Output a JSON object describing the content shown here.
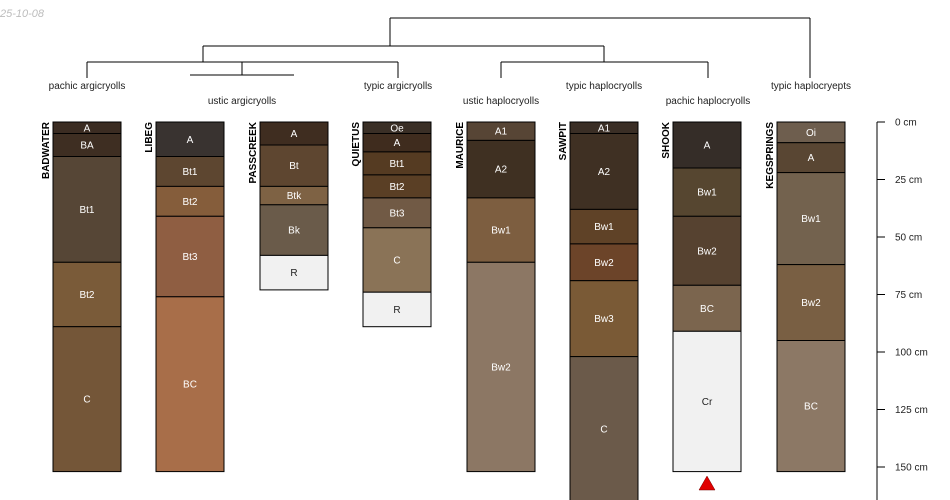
{
  "date_stamp": "25-10-08",
  "scale_labels": [
    "0 cm",
    "25 cm",
    "50 cm",
    "75 cm",
    "100 cm",
    "125 cm",
    "150 cm"
  ],
  "classes": [
    "pachic argicryolls",
    "ustic argicryolls",
    "typic argicryolls",
    "ustic haplocryolls",
    "typic haplocryolls",
    "pachic haplocryolls",
    "typic haplocryepts"
  ],
  "profiles": [
    {
      "name": "BADWATER",
      "horizons": [
        {
          "label": "A",
          "top": 0,
          "bottom": 5,
          "color": "#3b2c22"
        },
        {
          "label": "BA",
          "top": 5,
          "bottom": 15,
          "color": "#3e2e22"
        },
        {
          "label": "Bt1",
          "top": 15,
          "bottom": 61,
          "color": "#564636"
        },
        {
          "label": "Bt2",
          "top": 61,
          "bottom": 89,
          "color": "#7a5b39"
        },
        {
          "label": "C",
          "top": 89,
          "bottom": 152,
          "color": "#745638"
        }
      ]
    },
    {
      "name": "LIBEG",
      "horizons": [
        {
          "label": "A",
          "top": 0,
          "bottom": 15,
          "color": "#393330"
        },
        {
          "label": "Bt1",
          "top": 15,
          "bottom": 28,
          "color": "#5d4630"
        },
        {
          "label": "Bt2",
          "top": 28,
          "bottom": 41,
          "color": "#855d3b"
        },
        {
          "label": "Bt3",
          "top": 41,
          "bottom": 76,
          "color": "#8f5e42"
        },
        {
          "label": "BC",
          "top": 76,
          "bottom": 152,
          "color": "#a86e49"
        }
      ]
    },
    {
      "name": "PASSCREEK",
      "horizons": [
        {
          "label": "A",
          "top": 0,
          "bottom": 10,
          "color": "#3f2d20"
        },
        {
          "label": "Bt",
          "top": 10,
          "bottom": 28,
          "color": "#5e4630"
        },
        {
          "label": "Btk",
          "top": 28,
          "bottom": 36,
          "color": "#7e6244"
        },
        {
          "label": "Bk",
          "top": 36,
          "bottom": 58,
          "color": "#6a5b4a"
        },
        {
          "label": "R",
          "top": 58,
          "bottom": 73,
          "color": "#f1f1f1"
        }
      ]
    },
    {
      "name": "QUIETUS",
      "horizons": [
        {
          "label": "Oe",
          "top": 0,
          "bottom": 5,
          "color": "#3a2f26"
        },
        {
          "label": "A",
          "top": 5,
          "bottom": 13,
          "color": "#3f2c1e"
        },
        {
          "label": "Bt1",
          "top": 13,
          "bottom": 23,
          "color": "#553b22"
        },
        {
          "label": "Bt2",
          "top": 23,
          "bottom": 33,
          "color": "#5a3f25"
        },
        {
          "label": "Bt3",
          "top": 33,
          "bottom": 46,
          "color": "#715a45"
        },
        {
          "label": "C",
          "top": 46,
          "bottom": 74,
          "color": "#8a7357"
        },
        {
          "label": "R",
          "top": 74,
          "bottom": 89,
          "color": "#f1f1f1"
        }
      ]
    },
    {
      "name": "MAURICE",
      "horizons": [
        {
          "label": "A1",
          "top": 0,
          "bottom": 8,
          "color": "#574535"
        },
        {
          "label": "A2",
          "top": 8,
          "bottom": 33,
          "color": "#3f3022"
        },
        {
          "label": "Bw1",
          "top": 33,
          "bottom": 61,
          "color": "#7d5e40"
        },
        {
          "label": "Bw2",
          "top": 61,
          "bottom": 152,
          "color": "#8c7764"
        }
      ]
    },
    {
      "name": "SAWPIT",
      "horizons": [
        {
          "label": "A1",
          "top": 0,
          "bottom": 5,
          "color": "#3a2e25"
        },
        {
          "label": "A2",
          "top": 5,
          "bottom": 38,
          "color": "#3f3023"
        },
        {
          "label": "Bw1",
          "top": 38,
          "bottom": 53,
          "color": "#5f4227"
        },
        {
          "label": "Bw2",
          "top": 53,
          "bottom": 69,
          "color": "#6c4429"
        },
        {
          "label": "Bw3",
          "top": 69,
          "bottom": 102,
          "color": "#7a5a36"
        },
        {
          "label": "C",
          "top": 102,
          "bottom": 165,
          "color": "#6b5a4a"
        }
      ]
    },
    {
      "name": "SHOOK",
      "horizons": [
        {
          "label": "A",
          "top": 0,
          "bottom": 20,
          "color": "#352d28"
        },
        {
          "label": "Bw1",
          "top": 20,
          "bottom": 41,
          "color": "#564630"
        },
        {
          "label": "Bw2",
          "top": 41,
          "bottom": 71,
          "color": "#564230"
        },
        {
          "label": "BC",
          "top": 71,
          "bottom": 91,
          "color": "#7b654e"
        },
        {
          "label": "Cr",
          "top": 91,
          "bottom": 152,
          "color": "#f1f1f1"
        }
      ]
    },
    {
      "name": "KEGSPRINGS",
      "horizons": [
        {
          "label": "Oi",
          "top": 0,
          "bottom": 9,
          "color": "#6e5e4e"
        },
        {
          "label": "A",
          "top": 9,
          "bottom": 22,
          "color": "#594633"
        },
        {
          "label": "Bw1",
          "top": 22,
          "bottom": 62,
          "color": "#73624e"
        },
        {
          "label": "Bw2",
          "top": 62,
          "bottom": 95,
          "color": "#795f43"
        },
        {
          "label": "BC",
          "top": 95,
          "bottom": 152,
          "color": "#8c7865"
        }
      ]
    }
  ],
  "colors": {
    "text": "#222222",
    "light_text": "#ffffff",
    "dark_text": "#222222",
    "marker": "#e00000",
    "line": "#000000"
  }
}
